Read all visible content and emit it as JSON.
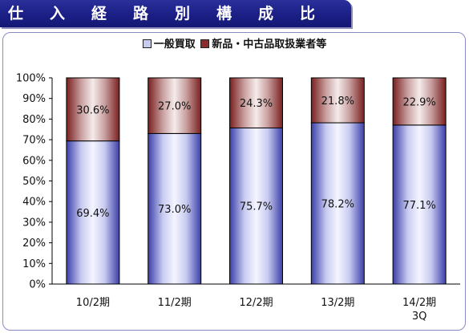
{
  "header": {
    "title": "仕入経路別構成比"
  },
  "legend": {
    "items": [
      {
        "label": "一般買取"
      },
      {
        "label": "新品・中古品取扱業者等"
      }
    ]
  },
  "colors": {
    "series_general": "#c8cbf0",
    "series_dealer": "#8a2d2d",
    "title_bg": "#1b1f86"
  },
  "chart_data": {
    "type": "bar",
    "stacked": true,
    "percent": true,
    "title": "",
    "xlabel": "",
    "ylabel": "",
    "categories": [
      "10/2期",
      "11/2期",
      "12/2期",
      "13/2期",
      "14/2期\n3Q"
    ],
    "series": [
      {
        "name": "一般買取",
        "values": [
          69.4,
          73.0,
          75.7,
          78.2,
          77.1
        ],
        "labels": [
          "69.4%",
          "73.0%",
          "75.7%",
          "78.2%",
          "77.1%"
        ]
      },
      {
        "name": "新品・中古品取扱業者等",
        "values": [
          30.6,
          27.0,
          24.3,
          21.8,
          22.9
        ],
        "labels": [
          "30.6%",
          "27.0%",
          "24.3%",
          "21.8%",
          "22.9%"
        ]
      }
    ],
    "ylim": [
      0,
      100
    ],
    "yticks": [
      "0%",
      "10%",
      "20%",
      "30%",
      "40%",
      "50%",
      "60%",
      "70%",
      "80%",
      "90%",
      "100%"
    ],
    "grid": false,
    "legend_position": "top"
  }
}
